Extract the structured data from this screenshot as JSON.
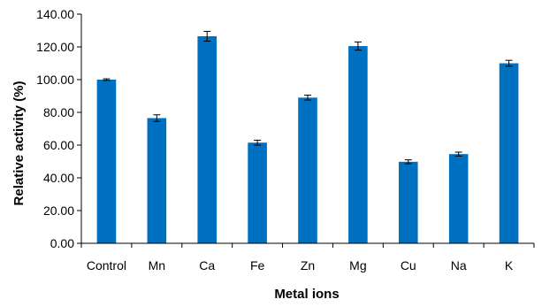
{
  "chart_data": {
    "type": "bar",
    "title": "",
    "xlabel": "Metal ions",
    "ylabel": "Relative activity (%)",
    "categories": [
      "Control",
      "Mn",
      "Ca",
      "Fe",
      "Zn",
      "Mg",
      "Cu",
      "Na",
      "K"
    ],
    "values": [
      100.0,
      76.5,
      126.5,
      61.5,
      89.0,
      120.5,
      49.8,
      54.5,
      110.0
    ],
    "errors": [
      0.5,
      2.0,
      3.0,
      1.5,
      1.5,
      2.5,
      1.2,
      1.2,
      1.8
    ],
    "ylim": [
      0,
      140
    ],
    "yticks": [
      "0.00",
      "20.00",
      "40.00",
      "60.00",
      "80.00",
      "100.00",
      "120.00",
      "140.00"
    ],
    "grid": false,
    "legend": "none",
    "bar_color": "#0070C0"
  }
}
